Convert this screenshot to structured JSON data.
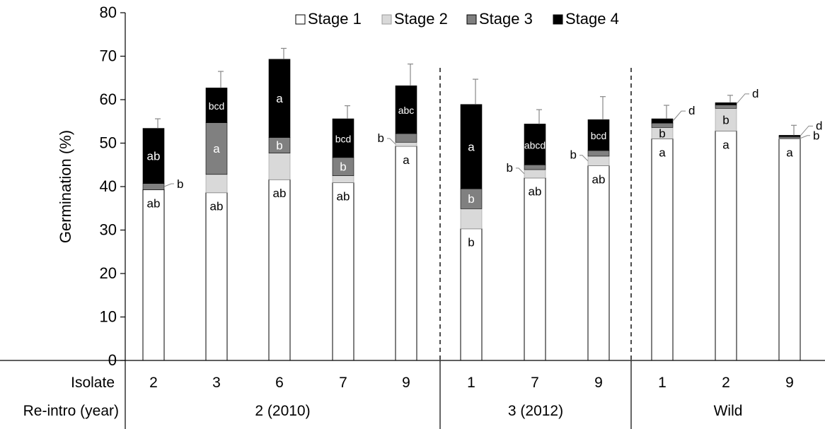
{
  "chart_data": {
    "type": "bar",
    "stacked": true,
    "title": "",
    "ylabel": "Germination (%)",
    "ylim": [
      0,
      80
    ],
    "yticks": [
      0,
      10,
      20,
      30,
      40,
      50,
      60,
      70,
      80
    ],
    "legend": {
      "placement": "top-center",
      "entries": [
        "Stage 1",
        "Stage 2",
        "Stage 3",
        "Stage 4"
      ]
    },
    "series_colors": [
      "#ffffff",
      "#d9d9d9",
      "#808080",
      "#000000"
    ],
    "row_labels": {
      "isolate": "Isolate",
      "reintro": "Re-intro (year)"
    },
    "groups": [
      {
        "label": "2 (2010)",
        "isolates": [
          "2",
          "3",
          "6",
          "7",
          "9"
        ]
      },
      {
        "label": "3 (2012)",
        "isolates": [
          "1",
          "7",
          "9"
        ]
      },
      {
        "label": "Wild",
        "isolates": [
          "1",
          "2",
          "9"
        ]
      }
    ],
    "bars": [
      {
        "isolate": "2",
        "group": "2 (2010)",
        "stages": [
          39.3,
          0.0,
          1.4,
          12.7
        ],
        "total": 53.4,
        "error": 2.2,
        "letters": [
          {
            "text": "ab",
            "stage": 1
          },
          {
            "text": "b",
            "stage": 3
          },
          {
            "text": "ab",
            "stage": 4
          }
        ]
      },
      {
        "isolate": "3",
        "group": "2 (2010)",
        "stages": [
          38.6,
          4.2,
          11.9,
          8.0
        ],
        "total": 62.7,
        "error": 3.8,
        "letters": [
          {
            "text": "ab",
            "stage": 1
          },
          {
            "text": "a",
            "stage": 3
          },
          {
            "text": "bcd",
            "stage": 4
          }
        ]
      },
      {
        "isolate": "6",
        "group": "2 (2010)",
        "stages": [
          41.6,
          6.1,
          3.6,
          18.0
        ],
        "total": 69.3,
        "error": 2.5,
        "letters": [
          {
            "text": "ab",
            "stage": 1
          },
          {
            "text": "b",
            "stage": 3
          },
          {
            "text": "a",
            "stage": 4
          }
        ]
      },
      {
        "isolate": "7",
        "group": "2 (2010)",
        "stages": [
          40.9,
          1.6,
          4.2,
          8.9
        ],
        "total": 55.6,
        "error": 3.0,
        "letters": [
          {
            "text": "ab",
            "stage": 1
          },
          {
            "text": "b",
            "stage": 3
          },
          {
            "text": "bcd",
            "stage": 4
          }
        ]
      },
      {
        "isolate": "9",
        "group": "2 (2010)",
        "stages": [
          49.3,
          0.9,
          2.0,
          11.0
        ],
        "total": 63.2,
        "error": 5.0,
        "letters": [
          {
            "text": "a",
            "stage": 1
          },
          {
            "text": "b",
            "stage": 2
          },
          {
            "text": "abc",
            "stage": 4
          }
        ]
      },
      {
        "isolate": "1",
        "group": "3 (2012)",
        "stages": [
          30.3,
          4.6,
          4.6,
          19.4
        ],
        "total": 58.9,
        "error": 5.8,
        "letters": [
          {
            "text": "b",
            "stage": 1
          },
          {
            "text": "b",
            "stage": 3
          },
          {
            "text": "a",
            "stage": 4
          }
        ]
      },
      {
        "isolate": "7",
        "group": "3 (2012)",
        "stages": [
          42.0,
          1.9,
          1.1,
          9.4
        ],
        "total": 54.4,
        "error": 3.3,
        "letters": [
          {
            "text": "ab",
            "stage": 1
          },
          {
            "text": "b",
            "stage": 2
          },
          {
            "text": "abcd",
            "stage": 4
          }
        ]
      },
      {
        "isolate": "9",
        "group": "3 (2012)",
        "stages": [
          44.8,
          2.2,
          1.3,
          7.1
        ],
        "total": 55.4,
        "error": 5.3,
        "letters": [
          {
            "text": "ab",
            "stage": 1
          },
          {
            "text": "b",
            "stage": 2
          },
          {
            "text": "bcd",
            "stage": 4
          }
        ]
      },
      {
        "isolate": "1",
        "group": "Wild",
        "stages": [
          51.0,
          2.6,
          1.0,
          1.0
        ],
        "total": 55.6,
        "error": 3.1,
        "letters": [
          {
            "text": "a",
            "stage": 1
          },
          {
            "text": "b",
            "stage": 2
          },
          {
            "text": "d",
            "stage": 4
          }
        ]
      },
      {
        "isolate": "2",
        "group": "Wild",
        "stages": [
          52.8,
          5.2,
          0.8,
          0.5
        ],
        "total": 59.3,
        "error": 1.7,
        "letters": [
          {
            "text": "a",
            "stage": 1
          },
          {
            "text": "b",
            "stage": 2
          },
          {
            "text": "d",
            "stage": 4
          }
        ]
      },
      {
        "isolate": "9",
        "group": "Wild",
        "stages": [
          51.0,
          0.2,
          0.3,
          0.3
        ],
        "total": 51.8,
        "error": 2.3,
        "letters": [
          {
            "text": "a",
            "stage": 1
          },
          {
            "text": "b",
            "stage": 2
          },
          {
            "text": "d",
            "stage": 4
          }
        ]
      }
    ]
  }
}
